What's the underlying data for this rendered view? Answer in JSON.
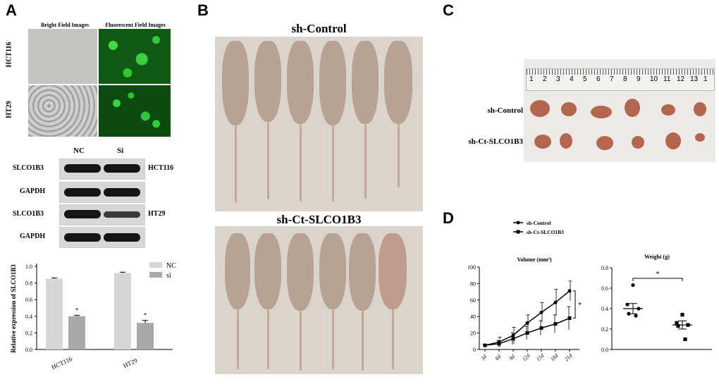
{
  "panels": {
    "a": "A",
    "b": "B",
    "c": "C",
    "d": "D"
  },
  "panel_a": {
    "image_headers": {
      "bright": "Bright Field Images",
      "fluor": "Fluorescent Field Images"
    },
    "rows": {
      "hct116": "HCT116",
      "ht29": "HT29"
    },
    "blot_cols": {
      "nc": "NC",
      "si": "Si"
    },
    "blot_rows": [
      {
        "protein": "SLCO1B3",
        "cell": "HCT116"
      },
      {
        "protein": "GAPDH",
        "cell": ""
      },
      {
        "protein": "SLCO1B3",
        "cell": "HT29"
      },
      {
        "protein": "GAPDH",
        "cell": ""
      }
    ]
  },
  "panel_b": {
    "top_label": "sh-Control",
    "bottom_label": "sh-Ct-SLCO1B3"
  },
  "panel_c": {
    "rows": [
      "sh-Control",
      "sh-Ct-SLCO1B3"
    ],
    "ruler_numbers": [
      "1",
      "2",
      "3",
      "4",
      "5",
      "6",
      "7",
      "8",
      "9",
      "10",
      "11",
      "12",
      "13",
      "1"
    ]
  },
  "panel_d": {
    "legend": [
      "sh-Control",
      "sh-Ct-SLCO1B3"
    ]
  },
  "chart_data": [
    {
      "type": "bar",
      "ylabel": "Relative expression of SLCO1B3",
      "categories": [
        "HCT116",
        "HT29"
      ],
      "series": [
        {
          "name": "NC",
          "values": [
            0.85,
            0.92
          ],
          "errors": [
            0.01,
            0.01
          ],
          "color": "#d6d6d6"
        },
        {
          "name": "si",
          "values": [
            0.4,
            0.32
          ],
          "errors": [
            0.01,
            0.03
          ],
          "color": "#a9a9a9"
        }
      ],
      "annotations": [
        "*",
        "*"
      ],
      "ylim": [
        0,
        1.0
      ],
      "yticks": [
        "0.0",
        "0.2",
        "0.4",
        "0.6",
        "0.8",
        "1.0"
      ]
    },
    {
      "type": "line",
      "title": "Volume (mm³)",
      "x": [
        "3d",
        "6d",
        "9d",
        "12d",
        "15d",
        "18d",
        "21d"
      ],
      "series": [
        {
          "name": "sh-Control",
          "values": [
            5,
            9,
            17,
            32,
            45,
            57,
            71
          ],
          "errors": [
            1,
            6,
            10,
            10,
            12,
            16,
            12
          ]
        },
        {
          "name": "sh-Ct-SLCO1B3",
          "values": [
            5,
            7,
            13,
            20,
            26,
            31,
            38
          ],
          "errors": [
            1,
            4,
            7,
            8,
            9,
            11,
            14
          ]
        }
      ],
      "ylim": [
        0,
        100
      ],
      "yticks": [
        "0",
        "20",
        "40",
        "60",
        "80",
        "100"
      ],
      "annotation": "*"
    },
    {
      "type": "scatter",
      "title": "Weight (g)",
      "groups": [
        {
          "name": "sh-Control",
          "points": [
            0.63,
            0.44,
            0.4,
            0.35,
            0.33
          ],
          "mean": 0.4,
          "sem": 0.05
        },
        {
          "name": "sh-Ct-SLCO1B3",
          "points": [
            0.34,
            0.26,
            0.24,
            0.23,
            0.1
          ],
          "mean": 0.24,
          "sem": 0.04
        }
      ],
      "ylim": [
        0,
        0.8
      ],
      "yticks": [
        "0.0",
        "0.2",
        "0.4",
        "0.6",
        "0.8"
      ],
      "annotation": "*"
    }
  ]
}
